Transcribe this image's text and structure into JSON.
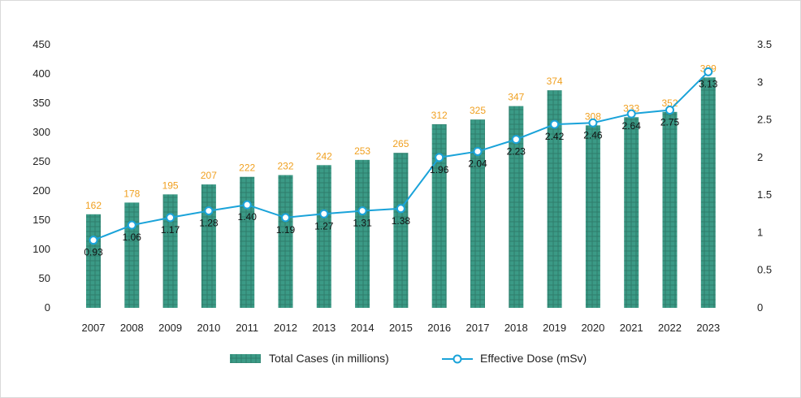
{
  "chart_data": {
    "type": "bar+line",
    "categories": [
      "2007",
      "2008",
      "2009",
      "2010",
      "2011",
      "2012",
      "2013",
      "2014",
      "2015",
      "2016",
      "2017",
      "2018",
      "2019",
      "2020",
      "2021",
      "2022",
      "2023"
    ],
    "series": [
      {
        "name": "Total Cases (in millions)",
        "type": "bar",
        "axis": "left",
        "values": [
          162,
          178,
          195,
          207,
          222,
          232,
          242,
          253,
          265,
          312,
          325,
          347,
          374,
          308,
          333,
          352,
          399
        ],
        "bar_heights": [
          160,
          180,
          194,
          211,
          224,
          227,
          244,
          253,
          265,
          314,
          322,
          345,
          372,
          312,
          326,
          335,
          394
        ]
      },
      {
        "name": "Effective Dose (mSv)",
        "type": "line",
        "axis": "right",
        "values": [
          0.93,
          1.06,
          1.17,
          1.28,
          1.4,
          1.19,
          1.27,
          1.31,
          1.38,
          1.96,
          2.04,
          2.23,
          2.42,
          2.46,
          2.64,
          2.75,
          3.13
        ],
        "point_values": [
          0.9,
          1.1,
          1.2,
          1.29,
          1.37,
          1.2,
          1.25,
          1.29,
          1.32,
          2.0,
          2.08,
          2.24,
          2.44,
          2.46,
          2.58,
          2.63,
          3.14
        ]
      }
    ],
    "bar_labels": [
      "162",
      "178",
      "195",
      "207",
      "222",
      "232",
      "242",
      "253",
      "265",
      "312",
      "325",
      "347",
      "374",
      "308",
      "333",
      "352",
      "399"
    ],
    "line_labels": [
      "0.93",
      "1.06",
      "1.17",
      "1.28",
      "1.40",
      "1.19",
      "1.27",
      "1.31",
      "1.38",
      "1.96",
      "2.04",
      "2.23",
      "2.42",
      "2.46",
      "2.64",
      "2.75",
      "3.13"
    ],
    "y_left": {
      "min": 0,
      "max": 450,
      "ticks": [
        "0",
        "50",
        "100",
        "150",
        "200",
        "250",
        "300",
        "350",
        "400",
        "450"
      ]
    },
    "y_right": {
      "min": 0,
      "max": 3.5,
      "ticks": [
        "0",
        "0.5",
        "1",
        "1.5",
        "2",
        "2.5",
        "3",
        "3.5"
      ]
    },
    "legend": {
      "position": "bottom",
      "items": [
        {
          "label": "Total Cases (in millions)",
          "kind": "bar"
        },
        {
          "label": "Effective Dose (mSv)",
          "kind": "line"
        }
      ]
    },
    "colors": {
      "bar": "#3b9a86",
      "bar_hatch": "#2f7d6c",
      "line": "#1aa3d9",
      "marker_fill": "#ffffff",
      "bar_label": "#f0a020",
      "line_label": "#111111"
    },
    "grid": false
  }
}
